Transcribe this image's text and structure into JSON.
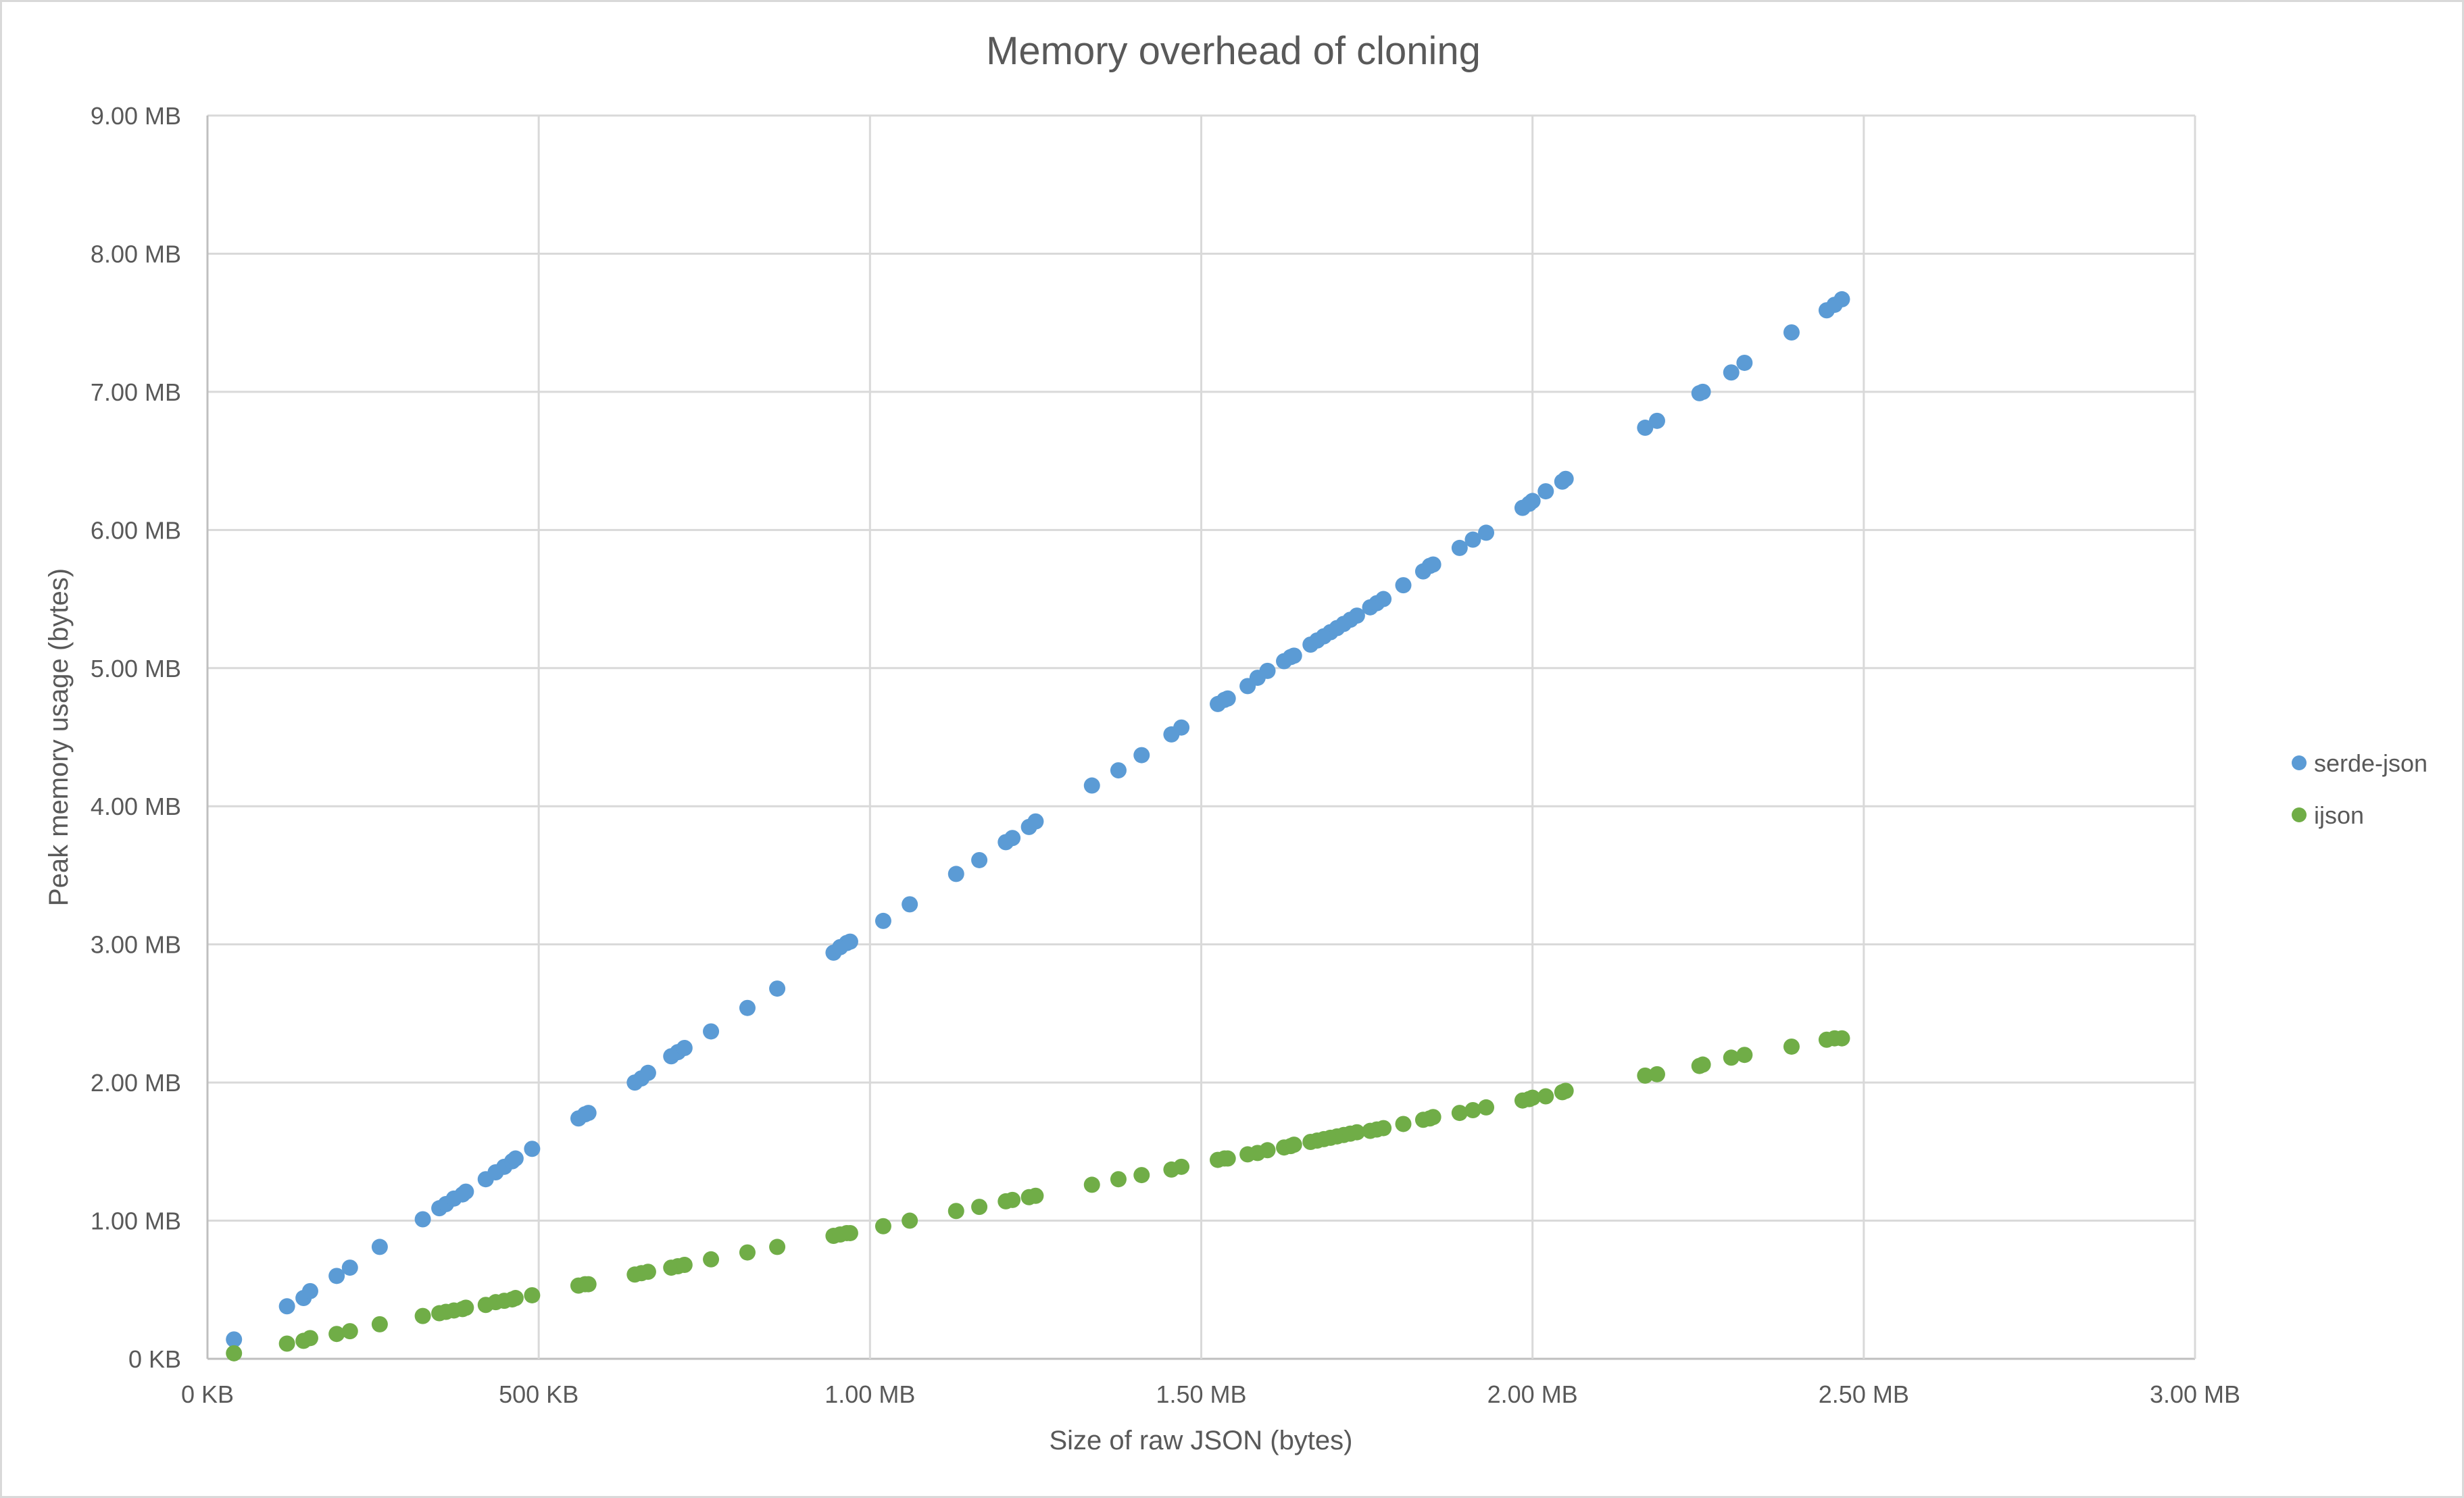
{
  "chart_data": {
    "type": "scatter",
    "title": "Memory overhead of cloning",
    "xlabel": "Size of raw JSON (bytes)",
    "ylabel": "Peak memory usage (bytes)",
    "x_unit": "MB",
    "y_unit": "MB",
    "xlim": [
      0,
      3.0
    ],
    "ylim": [
      0,
      9.0
    ],
    "x_ticks": [
      0,
      0.5,
      1.0,
      1.5,
      2.0,
      2.5,
      3.0
    ],
    "x_tick_labels": [
      "0 KB",
      "500 KB",
      "1.00 MB",
      "1.50 MB",
      "2.00 MB",
      "2.50 MB",
      "3.00 MB"
    ],
    "y_ticks": [
      0,
      1,
      2,
      3,
      4,
      5,
      6,
      7,
      8,
      9
    ],
    "y_tick_labels": [
      "0 KB",
      "1.00 MB",
      "2.00 MB",
      "3.00 MB",
      "4.00 MB",
      "5.00 MB",
      "6.00 MB",
      "7.00 MB",
      "8.00 MB",
      "9.00 MB"
    ],
    "grid": true,
    "legend_position": "right",
    "series": [
      {
        "name": "serde-json",
        "color": "#5b9bd5",
        "points": [
          [
            0.04,
            0.14
          ],
          [
            0.12,
            0.38
          ],
          [
            0.145,
            0.44
          ],
          [
            0.155,
            0.49
          ],
          [
            0.195,
            0.6
          ],
          [
            0.215,
            0.66
          ],
          [
            0.26,
            0.81
          ],
          [
            0.325,
            1.01
          ],
          [
            0.35,
            1.09
          ],
          [
            0.36,
            1.12
          ],
          [
            0.372,
            1.16
          ],
          [
            0.385,
            1.19
          ],
          [
            0.39,
            1.21
          ],
          [
            0.42,
            1.3
          ],
          [
            0.435,
            1.35
          ],
          [
            0.448,
            1.39
          ],
          [
            0.46,
            1.43
          ],
          [
            0.465,
            1.45
          ],
          [
            0.49,
            1.52
          ],
          [
            0.56,
            1.74
          ],
          [
            0.57,
            1.77
          ],
          [
            0.575,
            1.78
          ],
          [
            0.645,
            2.0
          ],
          [
            0.655,
            2.03
          ],
          [
            0.665,
            2.07
          ],
          [
            0.7,
            2.19
          ],
          [
            0.71,
            2.22
          ],
          [
            0.72,
            2.25
          ],
          [
            0.76,
            2.37
          ],
          [
            0.815,
            2.54
          ],
          [
            0.86,
            2.68
          ],
          [
            0.945,
            2.94
          ],
          [
            0.955,
            2.98
          ],
          [
            0.965,
            3.01
          ],
          [
            0.97,
            3.02
          ],
          [
            1.02,
            3.17
          ],
          [
            1.06,
            3.29
          ],
          [
            1.13,
            3.51
          ],
          [
            1.165,
            3.61
          ],
          [
            1.205,
            3.74
          ],
          [
            1.215,
            3.77
          ],
          [
            1.24,
            3.85
          ],
          [
            1.25,
            3.89
          ],
          [
            1.335,
            4.15
          ],
          [
            1.375,
            4.26
          ],
          [
            1.41,
            4.37
          ],
          [
            1.455,
            4.52
          ],
          [
            1.47,
            4.57
          ],
          [
            1.525,
            4.74
          ],
          [
            1.535,
            4.77
          ],
          [
            1.54,
            4.78
          ],
          [
            1.57,
            4.87
          ],
          [
            1.585,
            4.93
          ],
          [
            1.6,
            4.98
          ],
          [
            1.625,
            5.05
          ],
          [
            1.635,
            5.08
          ],
          [
            1.64,
            5.09
          ],
          [
            1.665,
            5.17
          ],
          [
            1.675,
            5.2
          ],
          [
            1.685,
            5.23
          ],
          [
            1.695,
            5.26
          ],
          [
            1.705,
            5.29
          ],
          [
            1.715,
            5.32
          ],
          [
            1.725,
            5.35
          ],
          [
            1.735,
            5.38
          ],
          [
            1.755,
            5.44
          ],
          [
            1.765,
            5.47
          ],
          [
            1.775,
            5.5
          ],
          [
            1.805,
            5.6
          ],
          [
            1.835,
            5.7
          ],
          [
            1.845,
            5.74
          ],
          [
            1.85,
            5.75
          ],
          [
            1.89,
            5.87
          ],
          [
            1.91,
            5.93
          ],
          [
            1.93,
            5.98
          ],
          [
            1.985,
            6.16
          ],
          [
            1.995,
            6.19
          ],
          [
            2.0,
            6.21
          ],
          [
            2.02,
            6.28
          ],
          [
            2.045,
            6.35
          ],
          [
            2.05,
            6.37
          ],
          [
            2.17,
            6.74
          ],
          [
            2.188,
            6.79
          ],
          [
            2.252,
            6.99
          ],
          [
            2.257,
            7.0
          ],
          [
            2.3,
            7.14
          ],
          [
            2.32,
            7.21
          ],
          [
            2.391,
            7.43
          ],
          [
            2.444,
            7.59
          ],
          [
            2.456,
            7.63
          ],
          [
            2.467,
            7.67
          ]
        ]
      },
      {
        "name": "ijson",
        "color": "#70ad47",
        "points": [
          [
            0.04,
            0.04
          ],
          [
            0.12,
            0.11
          ],
          [
            0.145,
            0.13
          ],
          [
            0.155,
            0.15
          ],
          [
            0.195,
            0.18
          ],
          [
            0.215,
            0.2
          ],
          [
            0.26,
            0.25
          ],
          [
            0.325,
            0.31
          ],
          [
            0.35,
            0.33
          ],
          [
            0.36,
            0.34
          ],
          [
            0.372,
            0.35
          ],
          [
            0.385,
            0.36
          ],
          [
            0.39,
            0.37
          ],
          [
            0.42,
            0.39
          ],
          [
            0.435,
            0.41
          ],
          [
            0.448,
            0.42
          ],
          [
            0.46,
            0.43
          ],
          [
            0.465,
            0.44
          ],
          [
            0.49,
            0.46
          ],
          [
            0.56,
            0.53
          ],
          [
            0.57,
            0.54
          ],
          [
            0.575,
            0.54
          ],
          [
            0.645,
            0.61
          ],
          [
            0.655,
            0.62
          ],
          [
            0.665,
            0.63
          ],
          [
            0.7,
            0.66
          ],
          [
            0.71,
            0.67
          ],
          [
            0.72,
            0.68
          ],
          [
            0.76,
            0.72
          ],
          [
            0.815,
            0.77
          ],
          [
            0.86,
            0.81
          ],
          [
            0.945,
            0.89
          ],
          [
            0.955,
            0.9
          ],
          [
            0.965,
            0.91
          ],
          [
            0.97,
            0.91
          ],
          [
            1.02,
            0.96
          ],
          [
            1.06,
            1.0
          ],
          [
            1.13,
            1.07
          ],
          [
            1.165,
            1.1
          ],
          [
            1.205,
            1.14
          ],
          [
            1.215,
            1.15
          ],
          [
            1.24,
            1.17
          ],
          [
            1.25,
            1.18
          ],
          [
            1.335,
            1.26
          ],
          [
            1.375,
            1.3
          ],
          [
            1.41,
            1.33
          ],
          [
            1.455,
            1.37
          ],
          [
            1.47,
            1.39
          ],
          [
            1.525,
            1.44
          ],
          [
            1.535,
            1.45
          ],
          [
            1.54,
            1.45
          ],
          [
            1.57,
            1.48
          ],
          [
            1.585,
            1.49
          ],
          [
            1.6,
            1.51
          ],
          [
            1.625,
            1.53
          ],
          [
            1.635,
            1.54
          ],
          [
            1.64,
            1.55
          ],
          [
            1.665,
            1.57
          ],
          [
            1.675,
            1.58
          ],
          [
            1.685,
            1.59
          ],
          [
            1.695,
            1.6
          ],
          [
            1.705,
            1.61
          ],
          [
            1.715,
            1.62
          ],
          [
            1.725,
            1.63
          ],
          [
            1.735,
            1.64
          ],
          [
            1.755,
            1.65
          ],
          [
            1.765,
            1.66
          ],
          [
            1.775,
            1.67
          ],
          [
            1.805,
            1.7
          ],
          [
            1.835,
            1.73
          ],
          [
            1.845,
            1.74
          ],
          [
            1.85,
            1.75
          ],
          [
            1.89,
            1.78
          ],
          [
            1.91,
            1.8
          ],
          [
            1.93,
            1.82
          ],
          [
            1.985,
            1.87
          ],
          [
            1.995,
            1.88
          ],
          [
            2.0,
            1.89
          ],
          [
            2.02,
            1.9
          ],
          [
            2.045,
            1.93
          ],
          [
            2.05,
            1.94
          ],
          [
            2.17,
            2.05
          ],
          [
            2.188,
            2.06
          ],
          [
            2.252,
            2.12
          ],
          [
            2.257,
            2.13
          ],
          [
            2.3,
            2.18
          ],
          [
            2.32,
            2.2
          ],
          [
            2.391,
            2.26
          ],
          [
            2.444,
            2.31
          ],
          [
            2.456,
            2.32
          ],
          [
            2.467,
            2.32
          ]
        ]
      }
    ]
  },
  "colors": {
    "gridline": "#d9d9d9",
    "text": "#595959",
    "border": "#d9d9d9",
    "background": "#ffffff"
  }
}
